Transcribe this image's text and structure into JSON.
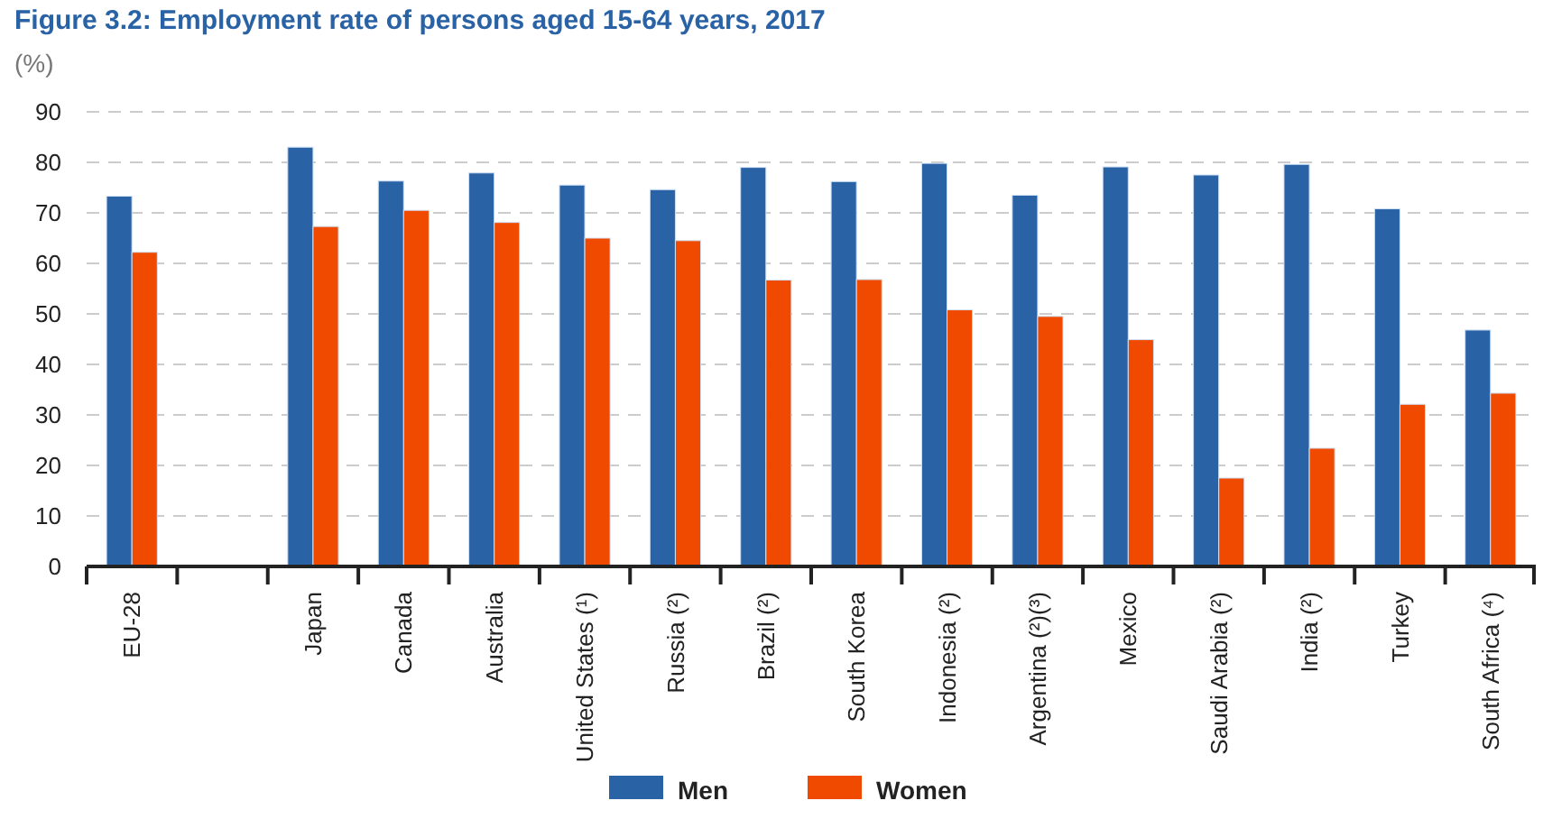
{
  "chart_data": {
    "type": "bar",
    "title": "Figure 3.2: Employment rate of persons aged 15-64 years, 2017",
    "ylabel": "(%)",
    "categories": [
      "EU-28",
      null,
      "Japan",
      "Canada",
      "Australia",
      "United States (¹)",
      "Russia (²)",
      "Brazil (²)",
      "South Korea",
      "Indonesia (²)",
      "Argentina (²)(³)",
      "Mexico",
      "Saudi Arabia (²)",
      "India (²)",
      "Turkey",
      "South Africa (⁴)"
    ],
    "series": [
      {
        "name": "Men",
        "color": "#2a62a6",
        "values": [
          73.3,
          null,
          83.0,
          76.3,
          77.9,
          75.5,
          74.6,
          79.0,
          76.2,
          79.8,
          73.5,
          79.1,
          77.5,
          79.6,
          70.8,
          46.8
        ]
      },
      {
        "name": "Women",
        "color": "#f04a00",
        "values": [
          62.2,
          null,
          67.3,
          70.5,
          68.1,
          65.0,
          64.5,
          56.7,
          56.8,
          50.8,
          49.5,
          44.9,
          17.5,
          23.4,
          32.1,
          34.3
        ]
      }
    ],
    "ylim": [
      0,
      90
    ],
    "yticks": [
      0,
      10,
      20,
      30,
      40,
      50,
      60,
      70,
      80,
      90
    ],
    "grid": "y",
    "legend": "bottom"
  }
}
